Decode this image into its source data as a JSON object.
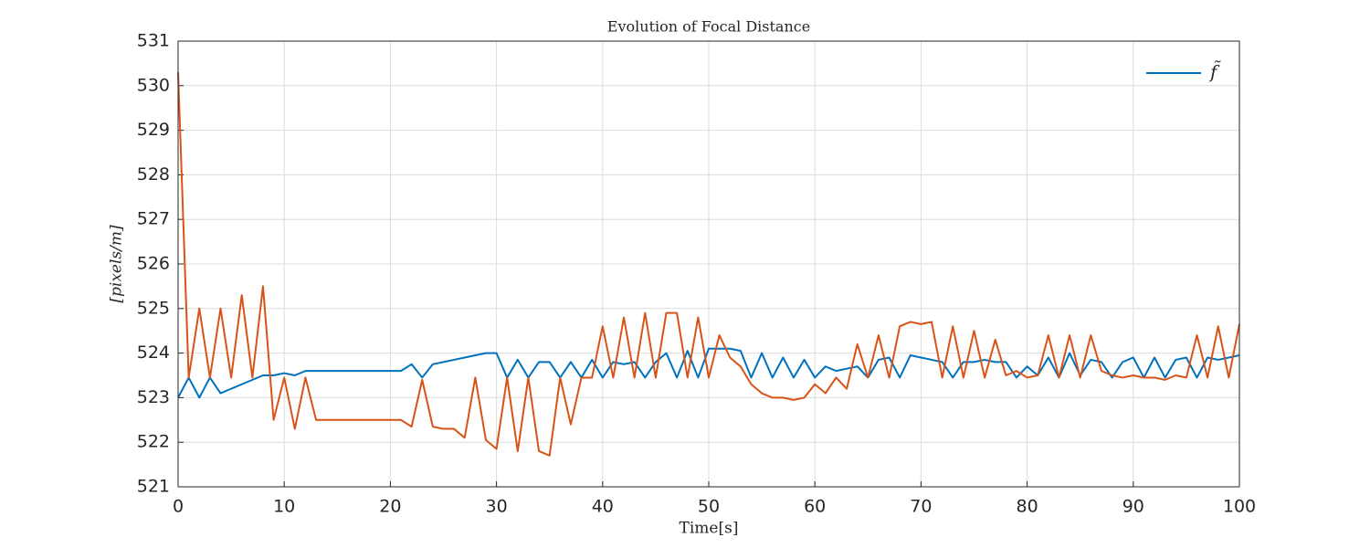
{
  "chart_data": {
    "type": "line",
    "title": "Evolution of Focal Distance",
    "x_label": "Time[s]",
    "y_label": "[pixels/m]",
    "x": [
      0,
      1,
      2,
      3,
      4,
      5,
      6,
      7,
      8,
      9,
      10,
      11,
      12,
      13,
      14,
      15,
      16,
      17,
      18,
      19,
      20,
      21,
      22,
      23,
      24,
      25,
      26,
      27,
      28,
      29,
      30,
      31,
      32,
      33,
      34,
      35,
      36,
      37,
      38,
      39,
      40,
      41,
      42,
      43,
      44,
      45,
      46,
      47,
      48,
      49,
      50,
      51,
      52,
      53,
      54,
      55,
      56,
      57,
      58,
      59,
      60,
      61,
      62,
      63,
      64,
      65,
      66,
      67,
      68,
      69,
      70,
      71,
      72,
      73,
      74,
      75,
      76,
      77,
      78,
      79,
      80,
      81,
      82,
      83,
      84,
      85,
      86,
      87,
      88,
      89,
      90,
      91,
      92,
      93,
      94,
      95,
      96,
      97,
      98,
      99,
      100
    ],
    "series": [
      {
        "name": "f̃",
        "color": "#0072BD",
        "values": [
          523.0,
          523.45,
          523.0,
          523.45,
          523.1,
          523.2,
          523.3,
          523.4,
          523.5,
          523.5,
          523.55,
          523.5,
          523.6,
          523.6,
          523.6,
          523.6,
          523.6,
          523.6,
          523.6,
          523.6,
          523.6,
          523.6,
          523.75,
          523.45,
          523.75,
          523.8,
          523.85,
          523.9,
          523.95,
          524.0,
          524.0,
          523.45,
          523.85,
          523.45,
          523.8,
          523.8,
          523.45,
          523.8,
          523.45,
          523.85,
          523.45,
          523.8,
          523.75,
          523.8,
          523.45,
          523.8,
          524.0,
          523.45,
          524.05,
          523.45,
          524.1,
          524.1,
          524.1,
          524.05,
          523.45,
          524.0,
          523.45,
          523.9,
          523.45,
          523.85,
          523.45,
          523.7,
          523.6,
          523.65,
          523.7,
          523.45,
          523.85,
          523.9,
          523.45,
          523.95,
          523.9,
          523.85,
          523.8,
          523.45,
          523.8,
          523.8,
          523.85,
          523.8,
          523.8,
          523.45,
          523.7,
          523.5,
          523.9,
          523.45,
          524.0,
          523.5,
          523.85,
          523.8,
          523.45,
          523.8,
          523.9,
          523.45,
          523.9,
          523.45,
          523.85,
          523.9,
          523.45,
          523.9,
          523.85,
          523.9,
          523.95
        ]
      },
      {
        "color": "#D95319",
        "values": [
          530.3,
          523.45,
          525.0,
          523.45,
          525.0,
          523.45,
          525.3,
          523.45,
          525.5,
          522.5,
          523.45,
          522.3,
          523.45,
          522.5,
          522.5,
          522.5,
          522.5,
          522.5,
          522.5,
          522.5,
          522.5,
          522.5,
          522.35,
          523.4,
          522.35,
          522.3,
          522.3,
          522.1,
          523.45,
          522.05,
          521.85,
          523.45,
          521.8,
          523.45,
          521.8,
          521.7,
          523.45,
          522.4,
          523.45,
          523.45,
          524.6,
          523.45,
          524.8,
          523.45,
          524.9,
          523.45,
          524.9,
          524.9,
          523.45,
          524.8,
          523.45,
          524.4,
          523.9,
          523.7,
          523.3,
          523.1,
          523.0,
          523.0,
          522.95,
          523.0,
          523.3,
          523.1,
          523.45,
          523.2,
          524.2,
          523.45,
          524.4,
          523.45,
          524.6,
          524.7,
          524.65,
          524.7,
          523.45,
          524.6,
          523.45,
          524.5,
          523.45,
          524.3,
          523.5,
          523.6,
          523.45,
          523.5,
          524.4,
          523.45,
          524.4,
          523.45,
          524.4,
          523.6,
          523.5,
          523.45,
          523.5,
          523.45,
          523.45,
          523.4,
          523.5,
          523.45,
          524.4,
          523.45,
          524.6,
          523.45,
          524.65
        ]
      }
    ],
    "xlim": [
      0,
      100
    ],
    "xticks": [
      0,
      10,
      20,
      30,
      40,
      50,
      60,
      70,
      80,
      90,
      100
    ],
    "ylim": [
      521,
      531
    ],
    "yticks": [
      521,
      522,
      523,
      524,
      525,
      526,
      527,
      528,
      529,
      530,
      531
    ],
    "grid": true,
    "legend": "upper right"
  }
}
